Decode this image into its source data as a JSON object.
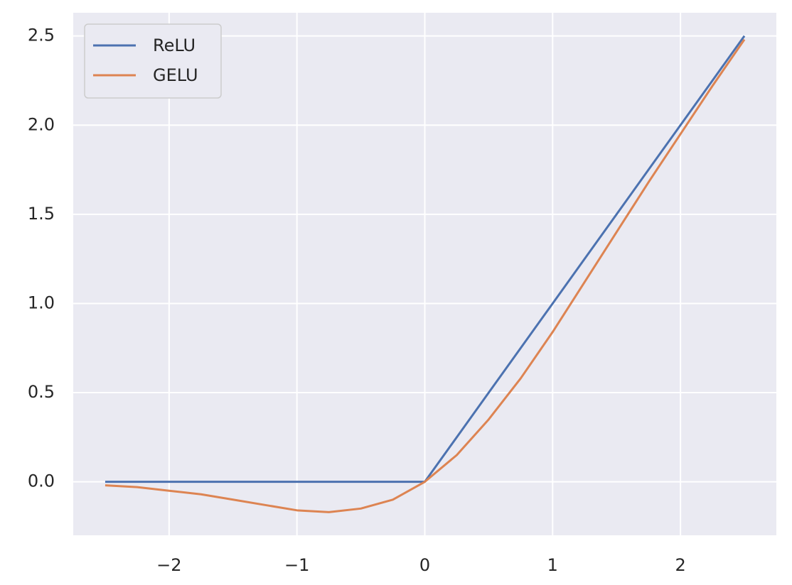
{
  "chart_data": {
    "type": "line",
    "x": [
      -2.5,
      -2.25,
      -2,
      -1.75,
      -1.5,
      -1.25,
      -1,
      -0.75,
      -0.5,
      -0.25,
      0,
      0.25,
      0.5,
      0.75,
      1,
      1.25,
      1.5,
      1.75,
      2,
      2.25,
      2.5
    ],
    "series": [
      {
        "name": "ReLU",
        "color": "#4c72b0",
        "values": [
          0,
          0,
          0,
          0,
          0,
          0,
          0,
          0,
          0,
          0,
          0,
          0.25,
          0.5,
          0.75,
          1,
          1.25,
          1.5,
          1.75,
          2,
          2.25,
          2.5
        ]
      },
      {
        "name": "GELU",
        "color": "#dd8452",
        "values": [
          -0.02,
          -0.03,
          -0.05,
          -0.07,
          -0.1,
          -0.13,
          -0.16,
          -0.17,
          -0.15,
          -0.1,
          0,
          0.15,
          0.35,
          0.58,
          0.84,
          1.12,
          1.4,
          1.68,
          1.95,
          2.22,
          2.48
        ]
      }
    ],
    "xlim": [
      -2.75,
      2.75
    ],
    "ylim": [
      -0.3,
      2.63
    ],
    "xticks": [
      {
        "value": -2,
        "label": "−2"
      },
      {
        "value": -1,
        "label": "−1"
      },
      0,
      1,
      2
    ],
    "yticks": [
      {
        "value": 0,
        "label": "0.0"
      },
      0.5,
      {
        "value": 1,
        "label": "1.0"
      },
      1.5,
      {
        "value": 2,
        "label": "2.0"
      },
      2.5
    ],
    "grid": true,
    "legend": "upper-left"
  }
}
